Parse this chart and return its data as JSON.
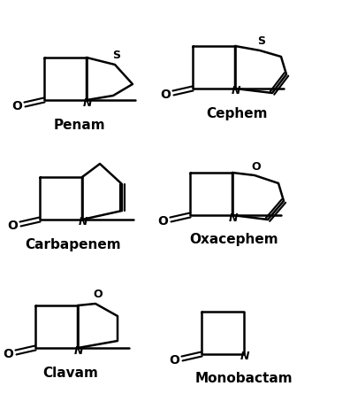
{
  "background_color": "#ffffff",
  "lw": 1.8,
  "text_color": "#000000",
  "structures": {
    "penam": {
      "name": "Penam",
      "blactam": [
        55,
        60,
        48,
        48
      ],
      "fused_ring": "thiazolidine_5",
      "het_atom": "S",
      "double_bond": false
    },
    "cephem": {
      "name": "Cephem",
      "blactam": [
        222,
        52,
        48,
        48
      ],
      "fused_ring": "dihydrothiazine_6",
      "het_atom": "S",
      "double_bond": true
    },
    "carbapenem": {
      "name": "Carbapenem",
      "blactam": [
        45,
        205,
        48,
        48
      ],
      "fused_ring": "pyroline_5",
      "het_atom": null,
      "double_bond": true
    },
    "oxacephem": {
      "name": "Oxacephem",
      "blactam": [
        218,
        200,
        48,
        48
      ],
      "fused_ring": "oxazine_6",
      "het_atom": "O",
      "double_bond": true
    },
    "clavam": {
      "name": "Clavam",
      "blactam": [
        42,
        348,
        48,
        48
      ],
      "fused_ring": "oxazolidine_5",
      "het_atom": "O",
      "double_bond": false
    },
    "monobactam": {
      "name": "Monobactam",
      "blactam": [
        230,
        355,
        48,
        48
      ],
      "fused_ring": null,
      "het_atom": null,
      "double_bond": false
    }
  }
}
